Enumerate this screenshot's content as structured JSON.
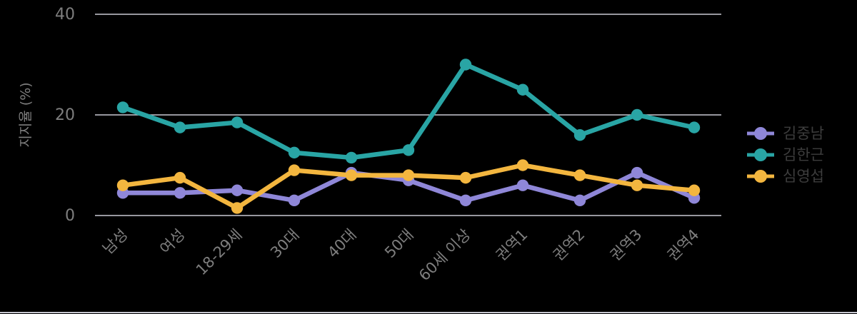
{
  "chart_data": {
    "type": "line",
    "title": "",
    "ylabel": "지지율 (%)",
    "xlabel": "",
    "categories": [
      "남성",
      "여성",
      "18-29세",
      "30대",
      "40대",
      "50대",
      "60세 이상",
      "권역1",
      "권역2",
      "권역3",
      "권역4"
    ],
    "series": [
      {
        "name": "김중남",
        "color": "#8F87D8",
        "values": [
          4.5,
          4.5,
          5,
          3,
          8.5,
          7,
          3,
          6,
          3,
          8.5,
          3.5
        ]
      },
      {
        "name": "김한근",
        "color": "#29A5A5",
        "values": [
          21.5,
          17.5,
          18.5,
          12.5,
          11.5,
          13,
          30,
          25,
          16,
          20,
          17.5
        ]
      },
      {
        "name": "심영섭",
        "color": "#F3B63F",
        "values": [
          6,
          7.5,
          1.5,
          9,
          8,
          8,
          7.5,
          10,
          8,
          6,
          5
        ]
      }
    ],
    "y_ticks": [
      0,
      20,
      40
    ],
    "ylim": [
      0,
      42
    ],
    "grid": true,
    "legend_position": "right",
    "legend_entries": [
      "김중남",
      "김한근",
      "심영섭"
    ],
    "colors": {
      "background": "#000000",
      "grid_line": "#c9c9d2",
      "tick_label": "#7e7e7e",
      "axis_label": "#7e7e7e",
      "legend_text": "#3d3d3d"
    }
  }
}
